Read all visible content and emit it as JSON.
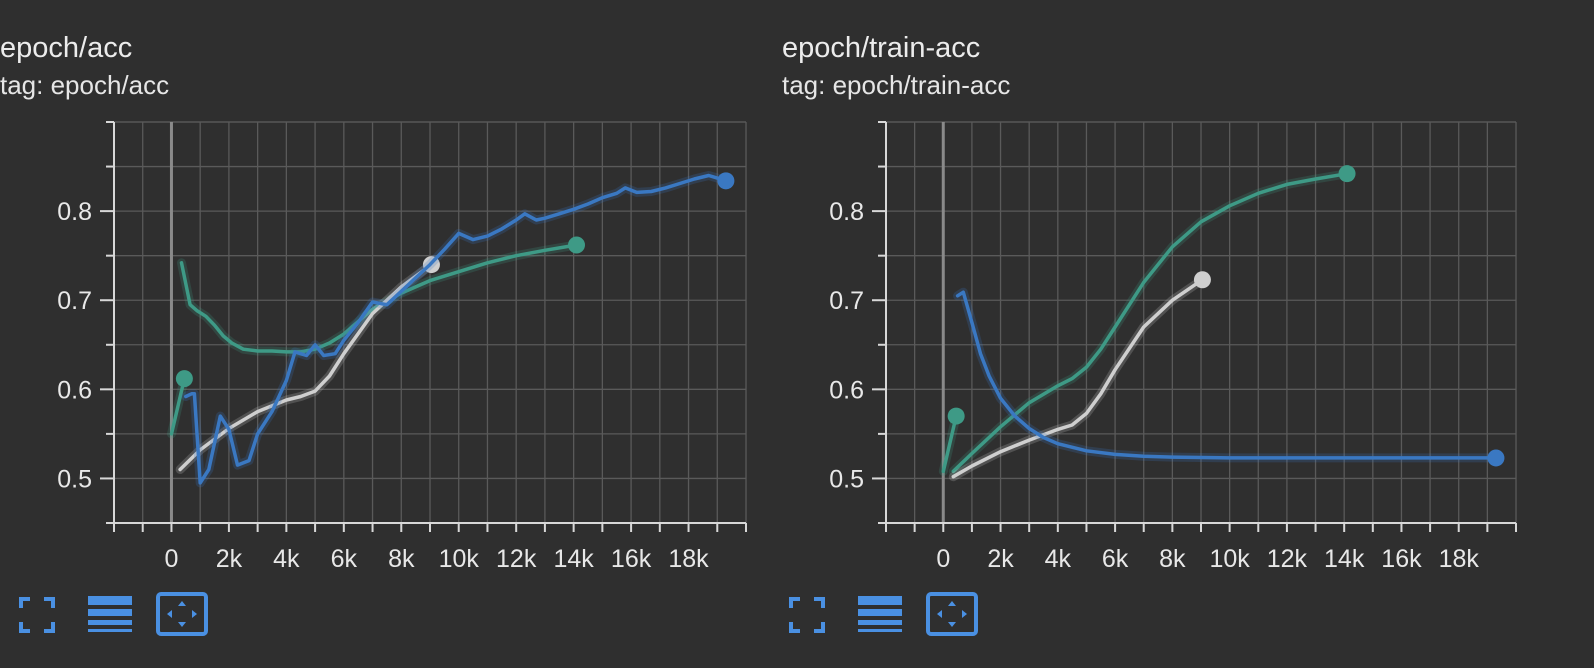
{
  "colors": {
    "background": "#2f2f2f",
    "grid": "#5a5a5a",
    "axis": "#d8d8d8",
    "zero_line": "#8a8a8a",
    "tick_text": "#e8e8e8",
    "icon": "#4a90e2",
    "series_blue": "#3a78c2",
    "series_green": "#3e9a86",
    "series_gray": "#cfcfcf"
  },
  "toolbar_icons": [
    "fullscreen-icon",
    "legend-list-icon",
    "fit-domain-icon"
  ],
  "chart_data": [
    {
      "type": "line",
      "title": "epoch/acc",
      "tag": "tag: epoch/acc",
      "xlim": [
        -2000,
        20000
      ],
      "ylim": [
        0.45,
        0.9
      ],
      "x_ticks": [
        0,
        2000,
        4000,
        6000,
        8000,
        10000,
        12000,
        14000,
        16000,
        18000
      ],
      "x_tick_labels": [
        "0",
        "2k",
        "4k",
        "6k",
        "8k",
        "10k",
        "12k",
        "14k",
        "16k",
        "18k"
      ],
      "y_ticks": [
        0.5,
        0.6,
        0.7,
        0.8
      ],
      "y_tick_labels": [
        "0.5",
        "0.6",
        "0.7",
        "0.8"
      ],
      "grid": true,
      "series": [
        {
          "color": "#3e9a86",
          "x": [
            0,
            450
          ],
          "y": [
            0.55,
            0.612
          ],
          "marker_last": true
        },
        {
          "color": "#3e9a86",
          "x": [
            350,
            650,
            900,
            1200,
            1500,
            1800,
            2100,
            2500,
            3000,
            3500,
            4000,
            4500,
            5000,
            5500,
            6000,
            7000,
            8000,
            9000,
            10000,
            11000,
            12000,
            13000,
            14100
          ],
          "y": [
            0.742,
            0.695,
            0.688,
            0.682,
            0.672,
            0.66,
            0.652,
            0.645,
            0.643,
            0.643,
            0.642,
            0.642,
            0.645,
            0.652,
            0.662,
            0.69,
            0.708,
            0.722,
            0.732,
            0.742,
            0.75,
            0.756,
            0.762
          ],
          "marker_last": true
        },
        {
          "color": "#cfcfcf",
          "x": [
            300,
            1000,
            2000,
            3000,
            4000,
            4500,
            5000,
            5500,
            6000,
            7000,
            8000,
            9050
          ],
          "y": [
            0.51,
            0.532,
            0.556,
            0.575,
            0.588,
            0.592,
            0.598,
            0.615,
            0.64,
            0.685,
            0.715,
            0.74
          ],
          "marker_last": true
        },
        {
          "color": "#3a78c2",
          "x": [
            500,
            700,
            800,
            1000,
            1300,
            1700,
            2000,
            2300,
            2700,
            3000,
            3500,
            4000,
            4300,
            4700,
            5000,
            5300,
            5700,
            6000,
            6500,
            7000,
            7500,
            8000,
            8500,
            9000,
            9500,
            10000,
            10500,
            11000,
            11500,
            12000,
            12300,
            12700,
            13000,
            13500,
            14000,
            14500,
            15000,
            15500,
            15800,
            16200,
            16700,
            17200,
            17700,
            18200,
            18700,
            19000,
            19300
          ],
          "y": [
            0.592,
            0.595,
            0.595,
            0.495,
            0.51,
            0.57,
            0.555,
            0.515,
            0.52,
            0.55,
            0.575,
            0.61,
            0.642,
            0.638,
            0.65,
            0.638,
            0.64,
            0.655,
            0.675,
            0.698,
            0.695,
            0.71,
            0.725,
            0.74,
            0.757,
            0.775,
            0.768,
            0.772,
            0.78,
            0.79,
            0.797,
            0.79,
            0.792,
            0.797,
            0.802,
            0.808,
            0.815,
            0.82,
            0.826,
            0.821,
            0.822,
            0.826,
            0.831,
            0.836,
            0.84,
            0.837,
            0.834
          ],
          "marker_last": true
        }
      ]
    },
    {
      "type": "line",
      "title": "epoch/train-acc",
      "tag": "tag: epoch/train-acc",
      "xlim": [
        -2000,
        20000
      ],
      "ylim": [
        0.45,
        0.9
      ],
      "x_ticks": [
        0,
        2000,
        4000,
        6000,
        8000,
        10000,
        12000,
        14000,
        16000,
        18000
      ],
      "x_tick_labels": [
        "0",
        "2k",
        "4k",
        "6k",
        "8k",
        "10k",
        "12k",
        "14k",
        "16k",
        "18k"
      ],
      "y_ticks": [
        0.5,
        0.6,
        0.7,
        0.8
      ],
      "y_tick_labels": [
        "0.5",
        "0.6",
        "0.7",
        "0.8"
      ],
      "grid": true,
      "series": [
        {
          "color": "#3e9a86",
          "x": [
            0,
            450
          ],
          "y": [
            0.508,
            0.57
          ],
          "marker_last": true
        },
        {
          "color": "#3e9a86",
          "x": [
            350,
            1000,
            2000,
            3000,
            4000,
            4500,
            5000,
            5500,
            6000,
            7000,
            8000,
            9000,
            10000,
            11000,
            12000,
            13000,
            14100
          ],
          "y": [
            0.508,
            0.528,
            0.558,
            0.585,
            0.604,
            0.612,
            0.625,
            0.645,
            0.67,
            0.72,
            0.76,
            0.788,
            0.806,
            0.82,
            0.83,
            0.836,
            0.842
          ],
          "marker_last": true
        },
        {
          "color": "#cfcfcf",
          "x": [
            350,
            1000,
            2000,
            3000,
            4000,
            4500,
            5000,
            5500,
            6000,
            7000,
            8000,
            9050
          ],
          "y": [
            0.502,
            0.514,
            0.53,
            0.543,
            0.555,
            0.56,
            0.573,
            0.595,
            0.622,
            0.67,
            0.7,
            0.723
          ],
          "marker_last": true
        },
        {
          "color": "#3a78c2",
          "x": [
            500,
            700,
            1000,
            1300,
            1600,
            2000,
            2500,
            3000,
            3500,
            4000,
            5000,
            6000,
            7000,
            8000,
            10000,
            12000,
            14000,
            16000,
            18000,
            19300
          ],
          "y": [
            0.705,
            0.709,
            0.675,
            0.64,
            0.615,
            0.59,
            0.57,
            0.556,
            0.546,
            0.539,
            0.531,
            0.527,
            0.525,
            0.524,
            0.523,
            0.523,
            0.523,
            0.523,
            0.523,
            0.523
          ],
          "marker_last": true
        }
      ]
    }
  ]
}
